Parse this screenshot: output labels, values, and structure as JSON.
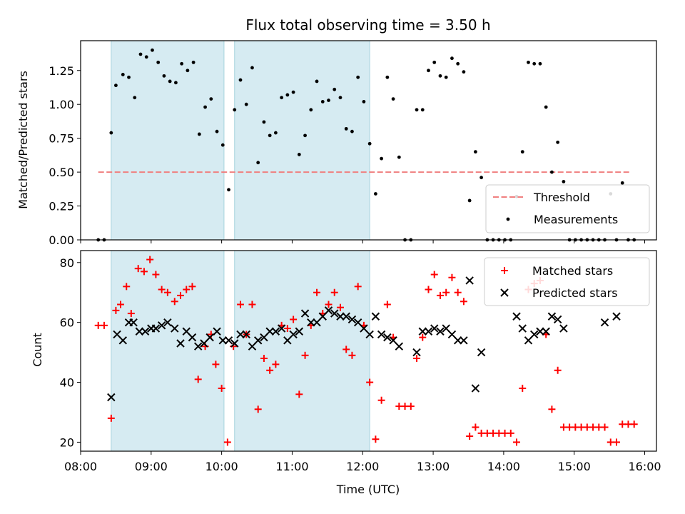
{
  "chart_data": [
    {
      "type": "scatter",
      "title": "Flux total observing time = 3.50 h",
      "ylabel": "Matched/Predicted stars",
      "xlabel": "",
      "ylim": [
        0,
        1.47
      ],
      "yticks": [
        "0.00",
        "0.25",
        "0.50",
        "0.75",
        "1.00",
        "1.25"
      ],
      "grid": false,
      "legend_position": "lower-right",
      "shaded_intervals": [
        [
          "08:26",
          "10:02"
        ],
        [
          "10:11",
          "12:06"
        ]
      ],
      "threshold": {
        "name": "Threshold",
        "value": 0.5,
        "x_range": [
          "08:15",
          "15:48"
        ],
        "color": "#f08080"
      },
      "series": [
        {
          "name": "Measurements",
          "color": "#000000",
          "points": [
            [
              "08:15",
              0.0
            ],
            [
              "08:20",
              0.0
            ],
            [
              "08:26",
              0.79
            ],
            [
              "08:30",
              1.14
            ],
            [
              "08:36",
              1.22
            ],
            [
              "08:41",
              1.2
            ],
            [
              "08:46",
              1.05
            ],
            [
              "08:51",
              1.37
            ],
            [
              "08:56",
              1.35
            ],
            [
              "09:01",
              1.4
            ],
            [
              "09:06",
              1.31
            ],
            [
              "09:11",
              1.21
            ],
            [
              "09:16",
              1.17
            ],
            [
              "09:21",
              1.16
            ],
            [
              "09:26",
              1.3
            ],
            [
              "09:31",
              1.25
            ],
            [
              "09:36",
              1.31
            ],
            [
              "09:41",
              0.78
            ],
            [
              "09:46",
              0.98
            ],
            [
              "09:51",
              1.04
            ],
            [
              "09:56",
              0.8
            ],
            [
              "10:01",
              0.7
            ],
            [
              "10:06",
              0.37
            ],
            [
              "10:11",
              0.96
            ],
            [
              "10:16",
              1.18
            ],
            [
              "10:21",
              1.0
            ],
            [
              "10:26",
              1.27
            ],
            [
              "10:31",
              0.57
            ],
            [
              "10:36",
              0.87
            ],
            [
              "10:41",
              0.77
            ],
            [
              "10:46",
              0.79
            ],
            [
              "10:51",
              1.05
            ],
            [
              "10:56",
              1.07
            ],
            [
              "11:01",
              1.09
            ],
            [
              "11:06",
              0.63
            ],
            [
              "11:11",
              0.77
            ],
            [
              "11:16",
              0.96
            ],
            [
              "11:21",
              1.17
            ],
            [
              "11:26",
              1.02
            ],
            [
              "11:31",
              1.03
            ],
            [
              "11:36",
              1.11
            ],
            [
              "11:41",
              1.05
            ],
            [
              "11:46",
              0.82
            ],
            [
              "11:51",
              0.8
            ],
            [
              "11:56",
              1.2
            ],
            [
              "12:01",
              1.02
            ],
            [
              "12:06",
              0.71
            ],
            [
              "12:11",
              0.34
            ],
            [
              "12:16",
              0.6
            ],
            [
              "12:21",
              1.2
            ],
            [
              "12:26",
              1.04
            ],
            [
              "12:31",
              0.61
            ],
            [
              "12:36",
              0.0
            ],
            [
              "12:41",
              0.0
            ],
            [
              "12:46",
              0.96
            ],
            [
              "12:51",
              0.96
            ],
            [
              "12:56",
              1.25
            ],
            [
              "13:01",
              1.31
            ],
            [
              "13:06",
              1.21
            ],
            [
              "13:11",
              1.2
            ],
            [
              "13:16",
              1.34
            ],
            [
              "13:21",
              1.3
            ],
            [
              "13:26",
              1.24
            ],
            [
              "13:31",
              0.29
            ],
            [
              "13:36",
              0.65
            ],
            [
              "13:41",
              0.46
            ],
            [
              "13:46",
              0.0
            ],
            [
              "13:51",
              0.0
            ],
            [
              "13:56",
              0.0
            ],
            [
              "14:01",
              0.0
            ],
            [
              "14:06",
              0.0
            ],
            [
              "14:11",
              0.32
            ],
            [
              "14:16",
              0.65
            ],
            [
              "14:21",
              1.31
            ],
            [
              "14:26",
              1.3
            ],
            [
              "14:31",
              1.3
            ],
            [
              "14:36",
              0.98
            ],
            [
              "14:41",
              0.5
            ],
            [
              "14:46",
              0.72
            ],
            [
              "14:51",
              0.43
            ],
            [
              "14:56",
              0.0
            ],
            [
              "15:01",
              0.0
            ],
            [
              "15:06",
              0.0
            ],
            [
              "15:11",
              0.0
            ],
            [
              "15:16",
              0.0
            ],
            [
              "15:21",
              0.0
            ],
            [
              "15:26",
              0.0
            ],
            [
              "15:31",
              0.34
            ],
            [
              "15:36",
              0.0
            ],
            [
              "15:41",
              0.42
            ],
            [
              "15:46",
              0.0
            ],
            [
              "15:51",
              0.0
            ]
          ]
        }
      ]
    },
    {
      "type": "scatter",
      "title": "",
      "ylabel": "Count",
      "xlabel": "Time (UTC)",
      "ylim": [
        17,
        84
      ],
      "yticks": [
        "20",
        "40",
        "60",
        "80"
      ],
      "xlim": [
        "08:00",
        "16:10"
      ],
      "xticks": [
        "08:00",
        "09:00",
        "10:00",
        "11:00",
        "12:00",
        "13:00",
        "14:00",
        "15:00",
        "16:00"
      ],
      "grid": false,
      "legend_position": "upper-right",
      "shaded_intervals": [
        [
          "08:26",
          "10:02"
        ],
        [
          "10:11",
          "12:06"
        ]
      ],
      "series": [
        {
          "name": "Matched stars",
          "marker": "plus",
          "color": "#ff0000",
          "points": [
            [
              "08:15",
              59
            ],
            [
              "08:20",
              59
            ],
            [
              "08:26",
              28
            ],
            [
              "08:30",
              64
            ],
            [
              "08:34",
              66
            ],
            [
              "08:39",
              72
            ],
            [
              "08:43",
              63
            ],
            [
              "08:49",
              78
            ],
            [
              "08:54",
              77
            ],
            [
              "08:59",
              81
            ],
            [
              "09:04",
              76
            ],
            [
              "09:09",
              71
            ],
            [
              "09:14",
              70
            ],
            [
              "09:20",
              67
            ],
            [
              "09:25",
              69
            ],
            [
              "09:30",
              71
            ],
            [
              "09:35",
              72
            ],
            [
              "09:40",
              41
            ],
            [
              "09:46",
              52
            ],
            [
              "09:51",
              56
            ],
            [
              "09:55",
              46
            ],
            [
              "10:00",
              38
            ],
            [
              "10:05",
              20
            ],
            [
              "10:10",
              52
            ],
            [
              "10:16",
              66
            ],
            [
              "10:21",
              56
            ],
            [
              "10:26",
              66
            ],
            [
              "10:31",
              31
            ],
            [
              "10:36",
              48
            ],
            [
              "10:41",
              44
            ],
            [
              "10:46",
              46
            ],
            [
              "10:51",
              59
            ],
            [
              "10:56",
              58
            ],
            [
              "11:01",
              61
            ],
            [
              "11:06",
              36
            ],
            [
              "11:11",
              49
            ],
            [
              "11:16",
              59
            ],
            [
              "11:21",
              70
            ],
            [
              "11:26",
              63
            ],
            [
              "11:31",
              66
            ],
            [
              "11:36",
              70
            ],
            [
              "11:41",
              65
            ],
            [
              "11:46",
              51
            ],
            [
              "11:51",
              49
            ],
            [
              "11:56",
              72
            ],
            [
              "12:01",
              59
            ],
            [
              "12:06",
              40
            ],
            [
              "12:11",
              21
            ],
            [
              "12:16",
              34
            ],
            [
              "12:21",
              66
            ],
            [
              "12:26",
              55
            ],
            [
              "12:31",
              32
            ],
            [
              "12:36",
              32
            ],
            [
              "12:41",
              32
            ],
            [
              "12:46",
              48
            ],
            [
              "12:51",
              55
            ],
            [
              "12:56",
              71
            ],
            [
              "13:01",
              76
            ],
            [
              "13:06",
              69
            ],
            [
              "13:11",
              70
            ],
            [
              "13:16",
              75
            ],
            [
              "13:21",
              70
            ],
            [
              "13:26",
              67
            ],
            [
              "13:31",
              22
            ],
            [
              "13:36",
              25
            ],
            [
              "13:41",
              23
            ],
            [
              "13:46",
              23
            ],
            [
              "13:51",
              23
            ],
            [
              "13:56",
              23
            ],
            [
              "14:01",
              23
            ],
            [
              "14:06",
              23
            ],
            [
              "14:11",
              20
            ],
            [
              "14:16",
              38
            ],
            [
              "14:21",
              71
            ],
            [
              "14:26",
              73
            ],
            [
              "14:31",
              74
            ],
            [
              "14:36",
              56
            ],
            [
              "14:41",
              31
            ],
            [
              "14:46",
              44
            ],
            [
              "14:51",
              25
            ],
            [
              "14:56",
              25
            ],
            [
              "15:01",
              25
            ],
            [
              "15:06",
              25
            ],
            [
              "15:11",
              25
            ],
            [
              "15:16",
              25
            ],
            [
              "15:21",
              25
            ],
            [
              "15:26",
              25
            ],
            [
              "15:31",
              20
            ],
            [
              "15:36",
              20
            ],
            [
              "15:41",
              26
            ],
            [
              "15:46",
              26
            ],
            [
              "15:51",
              26
            ]
          ]
        },
        {
          "name": "Predicted stars",
          "marker": "x",
          "color": "#000000",
          "points": [
            [
              "08:26",
              35
            ],
            [
              "08:31",
              56
            ],
            [
              "08:36",
              54
            ],
            [
              "08:41",
              60
            ],
            [
              "08:45",
              60
            ],
            [
              "08:50",
              57
            ],
            [
              "08:55",
              57
            ],
            [
              "09:00",
              58
            ],
            [
              "09:04",
              58
            ],
            [
              "09:09",
              59
            ],
            [
              "09:14",
              60
            ],
            [
              "09:20",
              58
            ],
            [
              "09:25",
              53
            ],
            [
              "09:30",
              57
            ],
            [
              "09:35",
              55
            ],
            [
              "09:40",
              52
            ],
            [
              "09:45",
              53
            ],
            [
              "09:50",
              55
            ],
            [
              "09:56",
              57
            ],
            [
              "10:01",
              54
            ],
            [
              "10:06",
              54
            ],
            [
              "10:11",
              53
            ],
            [
              "10:16",
              56
            ],
            [
              "10:21",
              56
            ],
            [
              "10:26",
              52
            ],
            [
              "10:31",
              54
            ],
            [
              "10:36",
              55
            ],
            [
              "10:41",
              57
            ],
            [
              "10:46",
              57
            ],
            [
              "10:51",
              58
            ],
            [
              "10:56",
              54
            ],
            [
              "11:01",
              56
            ],
            [
              "11:06",
              57
            ],
            [
              "11:11",
              63
            ],
            [
              "11:16",
              60
            ],
            [
              "11:21",
              60
            ],
            [
              "11:26",
              62
            ],
            [
              "11:31",
              64
            ],
            [
              "11:36",
              63
            ],
            [
              "11:41",
              62
            ],
            [
              "11:46",
              62
            ],
            [
              "11:51",
              61
            ],
            [
              "11:56",
              60
            ],
            [
              "12:01",
              58
            ],
            [
              "12:06",
              56
            ],
            [
              "12:11",
              62
            ],
            [
              "12:16",
              56
            ],
            [
              "12:21",
              55
            ],
            [
              "12:26",
              54
            ],
            [
              "12:31",
              52
            ],
            [
              "12:46",
              50
            ],
            [
              "12:51",
              57
            ],
            [
              "12:56",
              57
            ],
            [
              "13:01",
              58
            ],
            [
              "13:06",
              57
            ],
            [
              "13:11",
              58
            ],
            [
              "13:16",
              56
            ],
            [
              "13:21",
              54
            ],
            [
              "13:26",
              54
            ],
            [
              "13:31",
              74
            ],
            [
              "13:36",
              38
            ],
            [
              "13:41",
              50
            ],
            [
              "14:11",
              62
            ],
            [
              "14:16",
              58
            ],
            [
              "14:21",
              54
            ],
            [
              "14:26",
              56
            ],
            [
              "14:31",
              57
            ],
            [
              "14:36",
              57
            ],
            [
              "14:41",
              62
            ],
            [
              "14:46",
              61
            ],
            [
              "14:51",
              58
            ],
            [
              "15:26",
              60
            ],
            [
              "15:36",
              62
            ]
          ]
        }
      ]
    }
  ]
}
